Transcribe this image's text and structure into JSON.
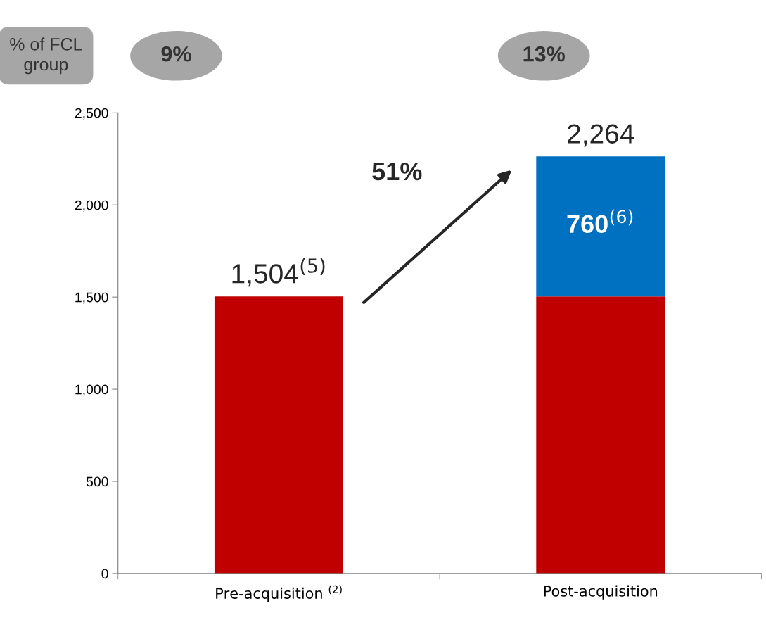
{
  "chart_data": {
    "type": "bar",
    "stacked": true,
    "categories": [
      "Pre-acquisition $^{(2)}$",
      "Post-acquisition"
    ],
    "series": [
      {
        "color": "#c00000",
        "values": [
          1504,
          1504
        ]
      },
      {
        "color": "#0070c0",
        "values": [
          null,
          760
        ],
        "value_labels": [
          null,
          "760$^{(6)}$"
        ]
      }
    ],
    "totals": [
      "1,504$^{(5)}$",
      "2,264"
    ],
    "ylim": [
      0,
      2500
    ],
    "yticks": [
      0,
      500,
      {
        "value": 1000,
        "label": "1,000"
      },
      {
        "value": 1500,
        "label": "1,500"
      },
      {
        "value": 2000,
        "label": "2,000"
      },
      {
        "value": 2500,
        "label": "2,500"
      }
    ],
    "grid": false,
    "legend": false,
    "annotations": [
      "% of FCL group",
      "9%",
      "13%",
      "51%"
    ]
  }
}
